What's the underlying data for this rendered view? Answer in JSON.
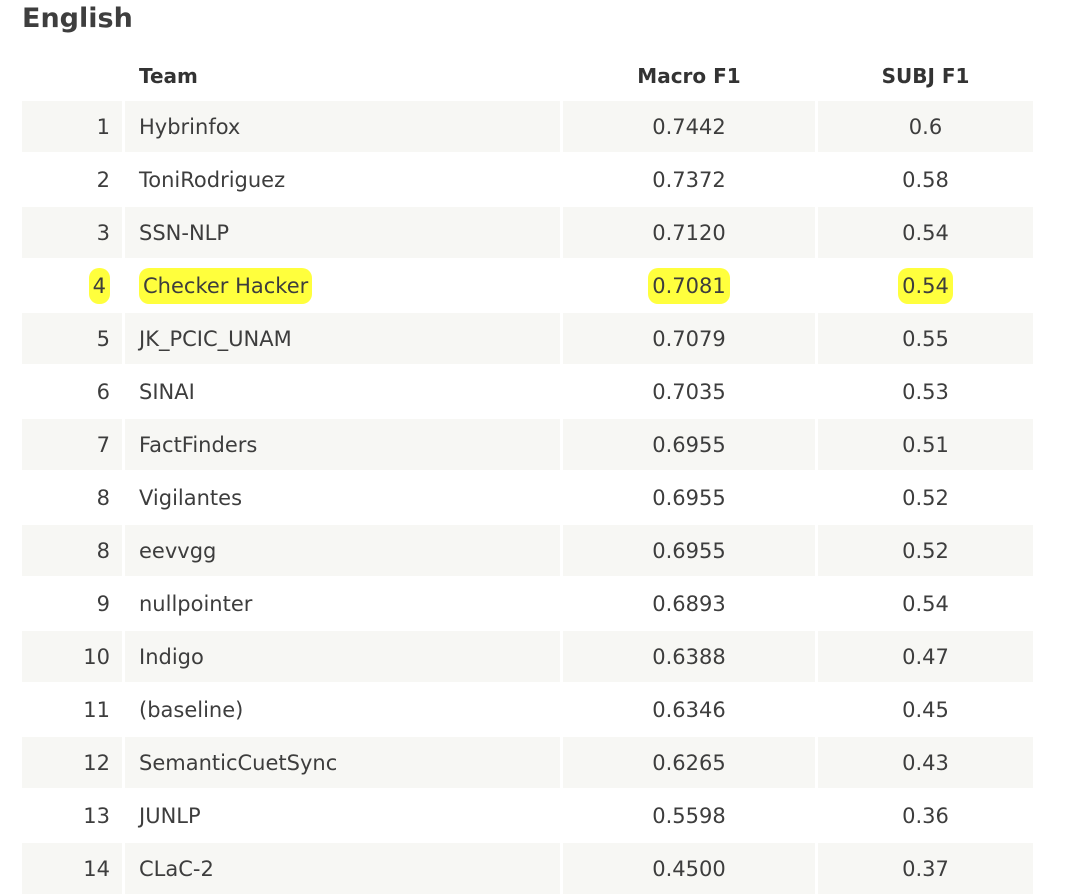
{
  "section": {
    "title": "English"
  },
  "table": {
    "headers": {
      "rank": "",
      "team": "Team",
      "macro_f1": "Macro F1",
      "subj_f1": "SUBJ F1"
    },
    "highlight_color": "#ffff3d",
    "rows": [
      {
        "rank": "1",
        "team": "Hybrinfox",
        "macro_f1": "0.7442",
        "subj_f1": "0.6",
        "highlighted": false
      },
      {
        "rank": "2",
        "team": "ToniRodriguez",
        "macro_f1": "0.7372",
        "subj_f1": "0.58",
        "highlighted": false
      },
      {
        "rank": "3",
        "team": "SSN-NLP",
        "macro_f1": "0.7120",
        "subj_f1": "0.54",
        "highlighted": false
      },
      {
        "rank": "4",
        "team": "Checker Hacker",
        "macro_f1": "0.7081",
        "subj_f1": "0.54",
        "highlighted": true
      },
      {
        "rank": "5",
        "team": "JK_PCIC_UNAM",
        "macro_f1": "0.7079",
        "subj_f1": "0.55",
        "highlighted": false
      },
      {
        "rank": "6",
        "team": "SINAI",
        "macro_f1": "0.7035",
        "subj_f1": "0.53",
        "highlighted": false
      },
      {
        "rank": "7",
        "team": "FactFinders",
        "macro_f1": "0.6955",
        "subj_f1": "0.51",
        "highlighted": false
      },
      {
        "rank": "8",
        "team": "Vigilantes",
        "macro_f1": "0.6955",
        "subj_f1": "0.52",
        "highlighted": false
      },
      {
        "rank": "8",
        "team": "eevvgg",
        "macro_f1": "0.6955",
        "subj_f1": "0.52",
        "highlighted": false
      },
      {
        "rank": "9",
        "team": "nullpointer",
        "macro_f1": "0.6893",
        "subj_f1": "0.54",
        "highlighted": false
      },
      {
        "rank": "10",
        "team": "Indigo",
        "macro_f1": "0.6388",
        "subj_f1": "0.47",
        "highlighted": false
      },
      {
        "rank": "11",
        "team": "(baseline)",
        "macro_f1": "0.6346",
        "subj_f1": "0.45",
        "highlighted": false
      },
      {
        "rank": "12",
        "team": "SemanticCuetSync",
        "macro_f1": "0.6265",
        "subj_f1": "0.43",
        "highlighted": false
      },
      {
        "rank": "13",
        "team": "JUNLP",
        "macro_f1": "0.5598",
        "subj_f1": "0.36",
        "highlighted": false
      },
      {
        "rank": "14",
        "team": "CLaC-2",
        "macro_f1": "0.4500",
        "subj_f1": "0.37",
        "highlighted": false
      }
    ]
  }
}
